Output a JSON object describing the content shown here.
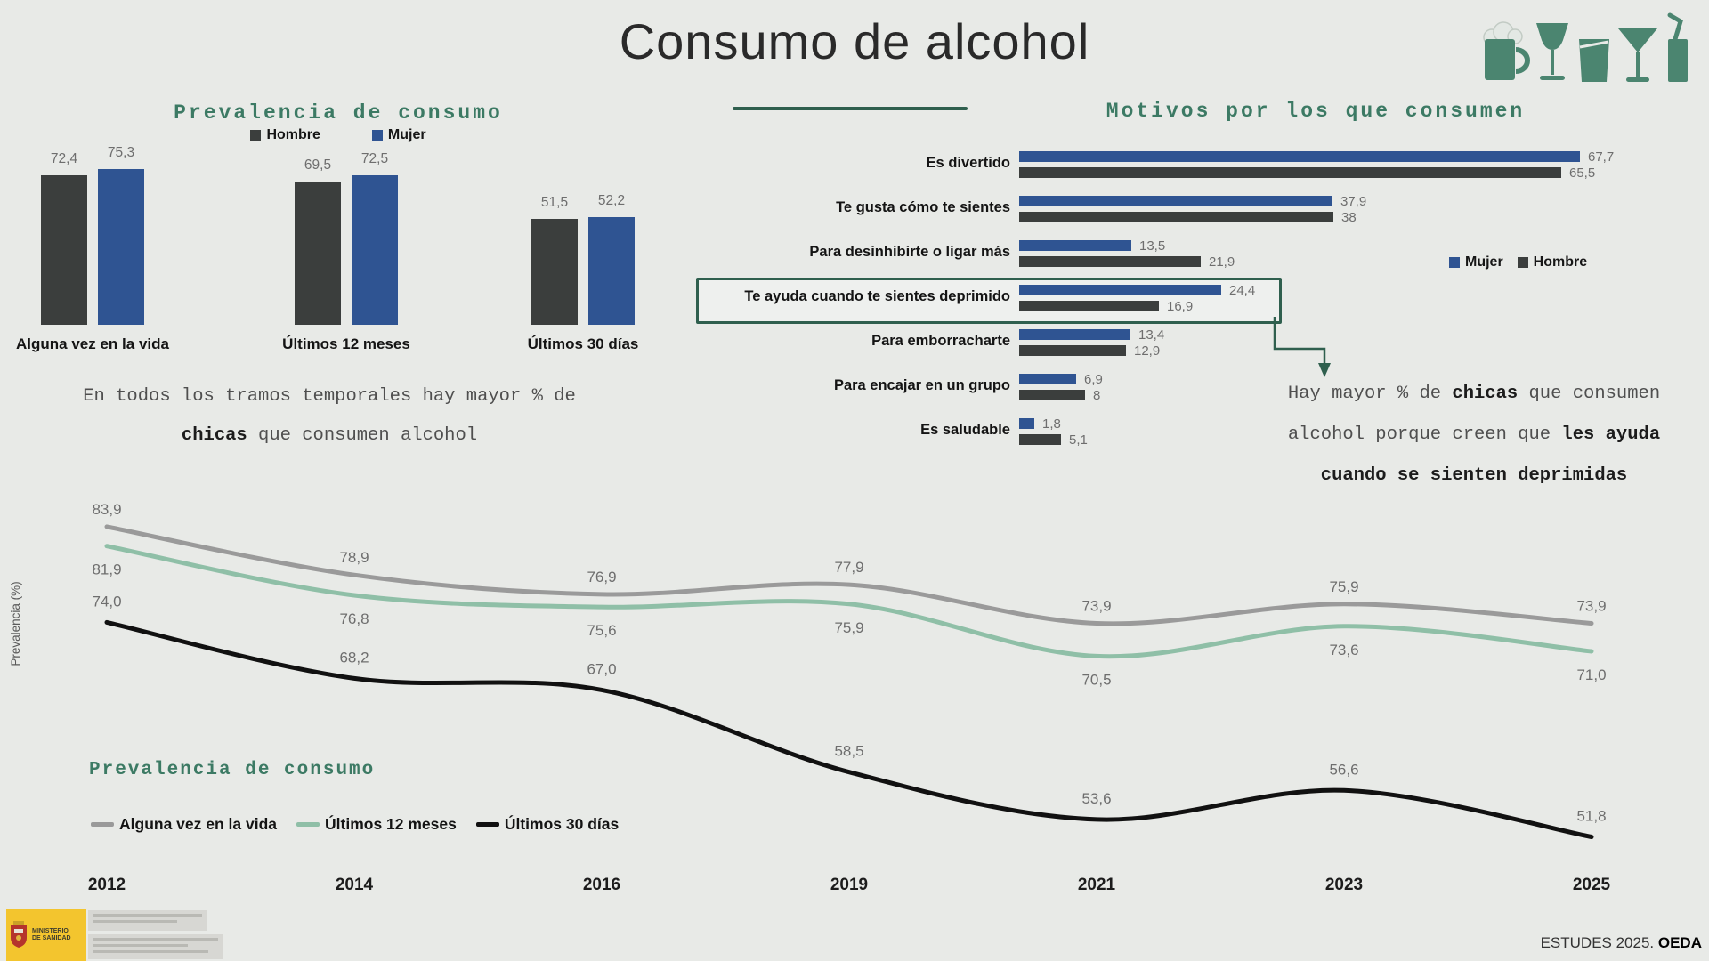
{
  "title": "Consumo de alcohol",
  "prevalence": {
    "heading": "Prevalencia de consumo",
    "note_line1": "En todos los tramos temporales hay mayor % de",
    "note_line2_bold": "chicas",
    "note_line2_rest": " que consumen alcohol"
  },
  "motives": {
    "heading": "Motivos por los que consumen",
    "annotation_line1_a": "Hay mayor % de ",
    "annotation_line1_b": "chicas",
    "annotation_line1_c": " que consumen",
    "annotation_line2_a": "alcohol porque creen que ",
    "annotation_line2_b": "les ayuda",
    "annotation_line3": "cuando se sienten deprimidas"
  },
  "trend": {
    "heading": "Prevalencia de consumo",
    "ylabel": "Prevalencia (%)"
  },
  "footer": {
    "ministry": "MINISTERIO DE SANIDAD",
    "source_regular": "ESTUDES 2025.",
    "source_bold": "OEDA"
  },
  "icons": [
    "beer-mug",
    "wine-glass",
    "tumbler-glass",
    "martini-glass",
    "drink-can-with-straw"
  ],
  "colors": {
    "background": "#e8eae7",
    "hombre": "#3b3e3d",
    "mujer": "#2f5492",
    "heading_green": "#3c7a64",
    "accent_green_dark": "#2f5f4e",
    "line_alguna_vez": "#9a9a9a",
    "line_12_meses": "#8fbfa7",
    "line_30_dias": "#111111",
    "value_label_gray": "#6e6e6e",
    "logo_yellow": "#f3c52e",
    "icon_green": "#4b8570"
  },
  "chart_data": [
    {
      "type": "bar",
      "title": "Prevalencia de consumo",
      "categories": [
        "Alguna vez en la vida",
        "Últimos 12 meses",
        "Últimos 30 días"
      ],
      "series": [
        {
          "name": "Hombre",
          "color": "#3b3e3d",
          "values": [
            72.4,
            69.5,
            51.5
          ],
          "labels": [
            "72,4",
            "69,5",
            "51,5"
          ]
        },
        {
          "name": "Mujer",
          "color": "#2f5492",
          "values": [
            75.3,
            72.5,
            52.2
          ],
          "labels": [
            "75,3",
            "72,5",
            "52,2"
          ]
        }
      ],
      "ylim": [
        0,
        85
      ],
      "grid": false,
      "legend_position": "top"
    },
    {
      "type": "bar",
      "orientation": "horizontal",
      "title": "Motivos por los que consumen",
      "categories": [
        "Es divertido",
        "Te gusta cómo te sientes",
        "Para desinhibirte o ligar más",
        "Te ayuda cuando te sientes deprimido",
        "Para emborracharte",
        "Para encajar en un grupo",
        "Es saludable"
      ],
      "series": [
        {
          "name": "Mujer",
          "color": "#2f5492",
          "values": [
            67.7,
            37.9,
            13.5,
            24.4,
            13.4,
            6.9,
            1.8
          ],
          "labels": [
            "67,7",
            "37,9",
            "13,5",
            "24,4",
            "13,4",
            "6,9",
            "1,8"
          ]
        },
        {
          "name": "Hombre",
          "color": "#3b3e3d",
          "values": [
            65.5,
            38,
            21.9,
            16.9,
            12.9,
            8,
            5.1
          ],
          "labels": [
            "65,5",
            "38",
            "21,9",
            "16,9",
            "12,9",
            "8",
            "5,1"
          ]
        }
      ],
      "highlighted_category": "Te ayuda cuando te sientes deprimido",
      "xlim": [
        0,
        70
      ],
      "grid": false,
      "legend_position": "right"
    },
    {
      "type": "line",
      "title": "Prevalencia de consumo",
      "ylabel": "Prevalencia (%)",
      "x": [
        2012,
        2014,
        2016,
        2019,
        2021,
        2023,
        2025
      ],
      "series": [
        {
          "name": "Alguna vez en la vida",
          "color": "#9a9a9a",
          "values": [
            83.9,
            78.9,
            76.9,
            77.9,
            73.9,
            75.9,
            73.9
          ],
          "labels": [
            "83,9",
            "78,9",
            "76,9",
            "77,9",
            "73,9",
            "75,9",
            "73,9"
          ]
        },
        {
          "name": "Últimos 12 meses",
          "color": "#8fbfa7",
          "values": [
            81.9,
            76.8,
            75.6,
            75.9,
            70.5,
            73.6,
            71.0
          ],
          "labels": [
            "81,9",
            "76,8",
            "75,6",
            "75,9",
            "70,5",
            "73,6",
            "71,0"
          ]
        },
        {
          "name": "Últimos 30 días",
          "color": "#111111",
          "values": [
            74.0,
            68.2,
            67.0,
            58.5,
            53.6,
            56.6,
            51.8
          ],
          "labels": [
            "74,0",
            "68,2",
            "67,0",
            "58,5",
            "53,6",
            "56,6",
            "51,8"
          ]
        }
      ],
      "ylim": [
        48,
        88
      ],
      "grid": false,
      "legend_position": "bottom-left"
    }
  ]
}
